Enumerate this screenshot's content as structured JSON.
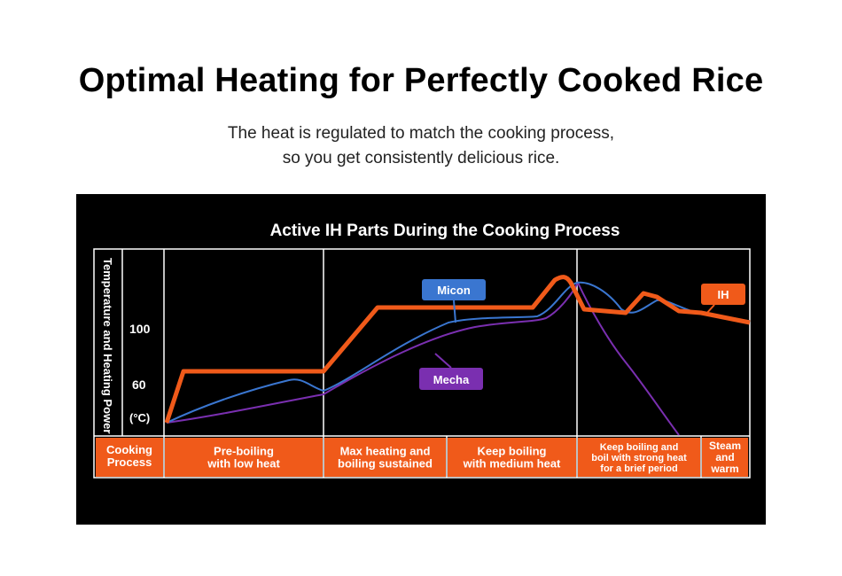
{
  "header": {
    "title": "Optimal Heating for Perfectly Cooked Rice",
    "subtitle_line1": "The heat is regulated to match the cooking process,",
    "subtitle_line2": "so you get consistently delicious rice."
  },
  "colors": {
    "background": "#000000",
    "ih": "#f05a1a",
    "micon": "#3a76d0",
    "mecha": "#7a2fb0",
    "grid": "#ffffff"
  },
  "chart_data": {
    "type": "line",
    "title": "Active IH Parts During the Cooking Process",
    "ylabel": "Temperature and Heating Power",
    "yunit": "(°C)",
    "yticks": [
      100,
      60
    ],
    "grid": true,
    "process_label": "Cooking Process",
    "stages": [
      "Pre-boiling with low heat",
      "Max heating and boiling sustained",
      "Keep boiling with medium heat",
      "Keep boiling and boil with strong heat for a brief period",
      "Steam and warm"
    ],
    "stage_lines": [
      [
        "Pre-boiling",
        "with low heat"
      ],
      [
        "Max heating and",
        "boiling sustained"
      ],
      [
        "Keep boiling",
        "with medium heat"
      ],
      [
        "Keep boiling and",
        "boil with strong heat",
        "for a brief period"
      ],
      [
        "Steam",
        "and",
        "warm"
      ]
    ],
    "series": [
      {
        "name": "IH",
        "color": "#f05a1a"
      },
      {
        "name": "Micon",
        "color": "#3a76d0"
      },
      {
        "name": "Mecha",
        "color": "#7a2fb0"
      }
    ]
  }
}
